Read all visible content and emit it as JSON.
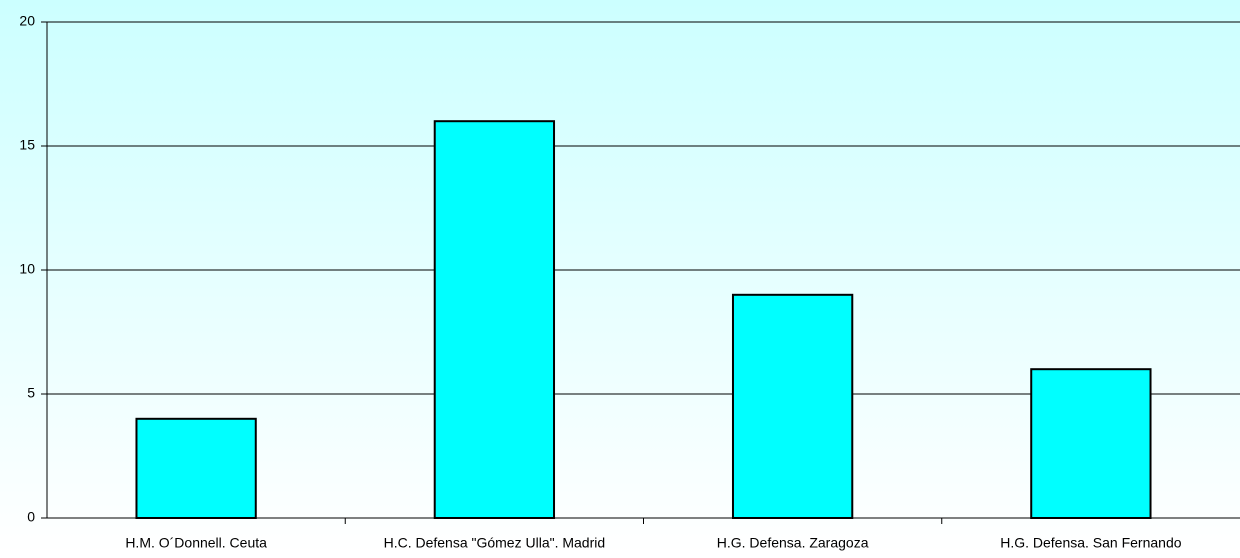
{
  "chart_data": {
    "type": "bar",
    "categories": [
      "H.M. O´Donnell. Ceuta",
      "H.C. Defensa \"Gómez Ulla\". Madrid",
      "H.G. Defensa. Zaragoza",
      "H.G. Defensa. San Fernando"
    ],
    "values": [
      4,
      16,
      9,
      6
    ],
    "color": "#00ffff",
    "ylim": [
      0,
      20
    ],
    "yticks": [
      0,
      5,
      10,
      15,
      20
    ],
    "grid": true
  }
}
